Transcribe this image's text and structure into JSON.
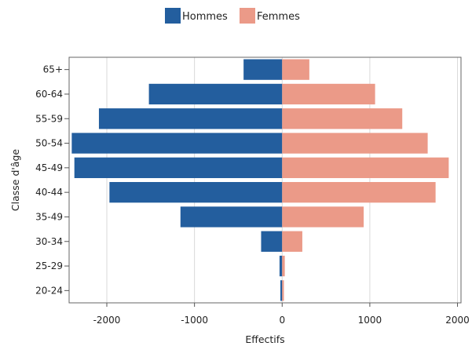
{
  "chart_data": {
    "type": "bar",
    "orientation": "horizontal-diverging",
    "categories": [
      "65+",
      "60-64",
      "55-59",
      "50-54",
      "45-49",
      "40-44",
      "35-49",
      "30-34",
      "25-29",
      "20-24"
    ],
    "series": [
      {
        "name": "Hommes",
        "color": "#235E9E",
        "values": [
          -440,
          -1520,
          -2090,
          -2400,
          -2370,
          -1970,
          -1160,
          -240,
          -30,
          -20
        ]
      },
      {
        "name": "Femmes",
        "color": "#EB9A88",
        "values": [
          310,
          1060,
          1370,
          1660,
          1900,
          1750,
          930,
          230,
          30,
          20
        ]
      }
    ],
    "xlabel": "Effectifs",
    "ylabel": "Classe d'âge",
    "xlim": [
      -2430,
      2040
    ],
    "xticks": [
      -2000,
      -1000,
      0,
      1000,
      2000
    ],
    "xtick_labels": [
      "-2000",
      "-1000",
      "0",
      "1000",
      "2000"
    ],
    "grid": "vertical",
    "legend_position": "top-center"
  }
}
